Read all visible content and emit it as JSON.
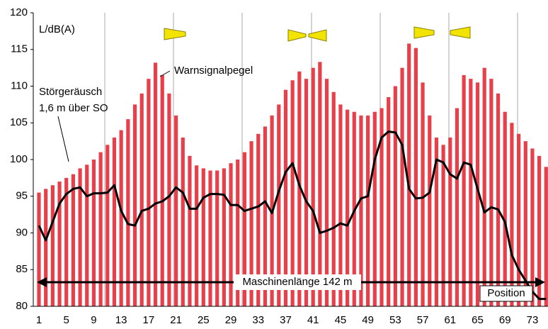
{
  "chart_data": {
    "type": "bar",
    "y_label": "L/dB(A)",
    "categories": [
      "1",
      null,
      null,
      null,
      "5",
      null,
      null,
      null,
      "9",
      null,
      null,
      null,
      "13",
      null,
      null,
      null,
      "17",
      null,
      null,
      null,
      "21",
      null,
      null,
      null,
      "25",
      null,
      null,
      null,
      "29",
      null,
      null,
      null,
      "33",
      null,
      null,
      null,
      "37",
      null,
      null,
      null,
      "41",
      null,
      null,
      null,
      "45",
      null,
      null,
      null,
      "49",
      null,
      null,
      null,
      "53",
      null,
      null,
      null,
      "57",
      null,
      null,
      null,
      "61",
      null,
      null,
      null,
      "65",
      null,
      null,
      null,
      "69",
      null,
      null,
      null,
      "73",
      null,
      null
    ],
    "series": [
      {
        "name": "Warnsignalpegel",
        "color": "#e8404a",
        "type": "bar",
        "values": [
          95.5,
          96,
          96.5,
          97,
          97.5,
          98,
          98.8,
          99.3,
          100,
          101,
          102,
          103,
          104,
          105.5,
          107.5,
          109,
          111,
          113.2,
          111.5,
          109,
          106,
          103,
          100.5,
          99.2,
          98.8,
          98.5,
          98.5,
          98.8,
          99.5,
          100,
          101,
          102.5,
          103.5,
          104.5,
          106,
          107.5,
          109.5,
          110.8,
          112,
          111,
          112.5,
          113.3,
          111,
          109.2,
          107.5,
          106.8,
          106.5,
          106,
          106,
          106.5,
          107,
          108.5,
          110,
          112.5,
          115.8,
          115.2,
          110.5,
          106,
          103,
          102,
          103,
          107,
          111.5,
          111,
          110.5,
          112.5,
          111,
          109,
          106.5,
          105,
          103.5,
          102.5,
          101.5,
          100.5,
          99
        ]
      },
      {
        "name": "Störgeräusch",
        "name_line2": "1,6 m über SO",
        "color": "#000000",
        "type": "line",
        "values": [
          91,
          89,
          91.5,
          94,
          95.3,
          96,
          96.2,
          95,
          95.4,
          95.4,
          95.5,
          96.5,
          93,
          91.2,
          91,
          93,
          93.3,
          94,
          94.3,
          95,
          96.2,
          95.5,
          93.3,
          93.3,
          94.8,
          95.3,
          95.3,
          95.2,
          93.8,
          93.8,
          93,
          93.3,
          93.6,
          94.3,
          92.7,
          95.7,
          98.3,
          99.5,
          96.5,
          94.3,
          93,
          90,
          90.3,
          90.7,
          91.3,
          91,
          93,
          94.7,
          95,
          100,
          103,
          103.8,
          103.7,
          102,
          96,
          94.7,
          94.8,
          95.5,
          100,
          99.6,
          98,
          97.4,
          99.6,
          99.3,
          96,
          92.8,
          93.5,
          93.2,
          91.5,
          87,
          85,
          83.5,
          82,
          81,
          81
        ]
      }
    ],
    "annotations": [
      "Maschinenlänge 142 m",
      "Position"
    ],
    "ylim": [
      80,
      120
    ],
    "yticks": [
      80,
      85,
      90,
      95,
      100,
      105,
      110,
      115,
      120
    ],
    "grid": false
  }
}
